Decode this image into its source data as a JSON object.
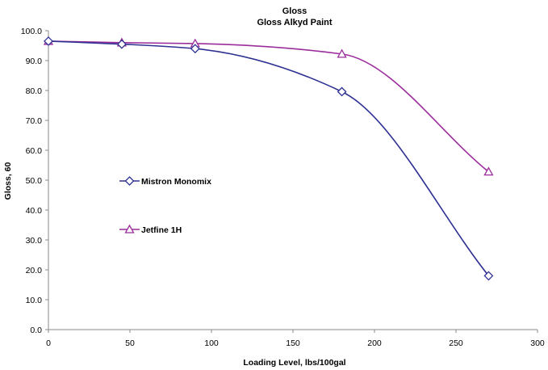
{
  "chart_data": {
    "type": "line",
    "title": "Gloss",
    "subtitle": "Gloss Alkyd Paint",
    "xlabel": "Loading Level, lbs/100gal",
    "ylabel": "Gloss, 60",
    "xlim": [
      0,
      300
    ],
    "ylim": [
      0,
      100
    ],
    "x_ticks": [
      "0",
      "50",
      "100",
      "150",
      "200",
      "250",
      "300"
    ],
    "y_ticks": [
      "0.0",
      "10.0",
      "20.0",
      "30.0",
      "40.0",
      "50.0",
      "60.0",
      "70.0",
      "80.0",
      "90.0",
      "100.0"
    ],
    "grid": false,
    "legend_position": "inside-left",
    "series": [
      {
        "name": "Mistron Monomix",
        "marker": "diamond",
        "color": "#2e3192",
        "x": [
          0,
          45,
          90,
          180,
          270
        ],
        "y": [
          96.5,
          95.5,
          94.0,
          79.6,
          18.0
        ]
      },
      {
        "name": "Jetfine 1H",
        "marker": "triangle",
        "color": "#9b2d9b",
        "x": [
          0,
          45,
          90,
          180,
          270
        ],
        "y": [
          96.5,
          96.0,
          95.7,
          92.2,
          52.8
        ]
      }
    ]
  }
}
